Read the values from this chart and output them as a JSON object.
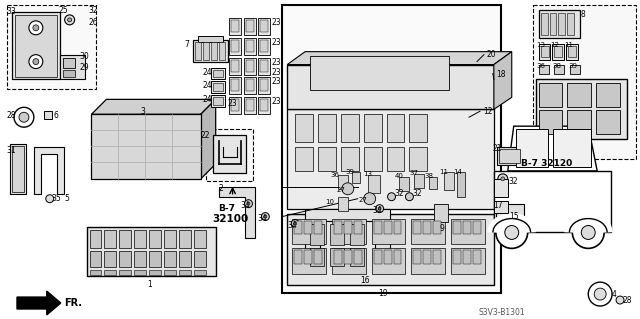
{
  "bg_color": "#ffffff",
  "footer_code": "S3V3-B1301",
  "b7_32100": "B-7\n32100",
  "b7_32120": "B-7 32120",
  "fr_label": "FR."
}
